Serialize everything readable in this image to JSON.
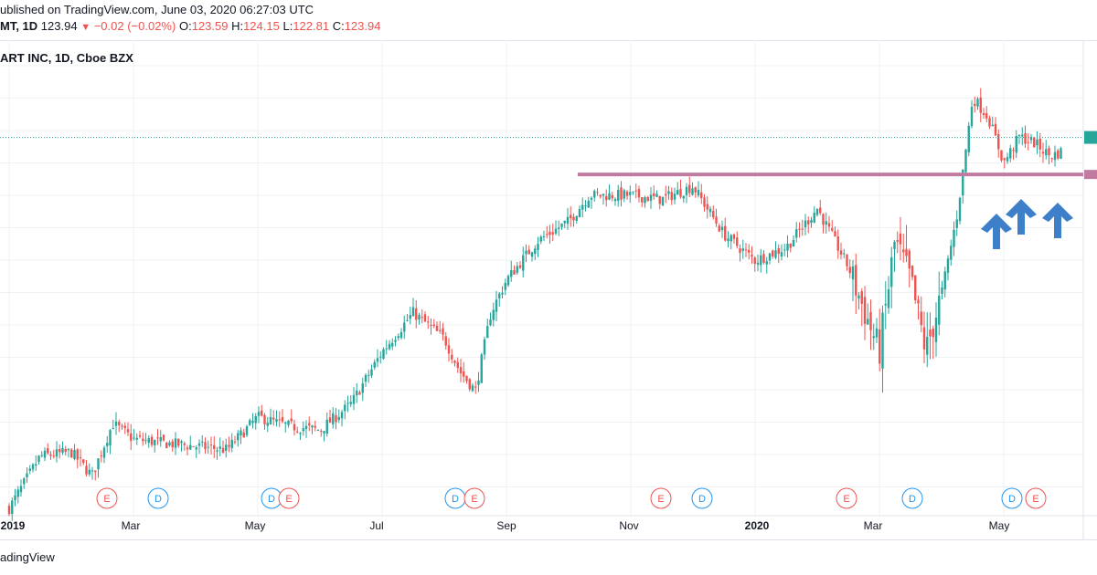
{
  "header": {
    "published": "ublished on TradingView.com, June 03, 2020 06:27:03 UTC",
    "symbol": "MT, 1D",
    "last": "123.94",
    "change": "−0.02 (−0.02%)",
    "o_label": "O:",
    "o_val": "123.59",
    "h_label": "H:",
    "h_val": "124.15",
    "l_label": "L:",
    "l_val": "122.81",
    "c_label": "C:",
    "c_val": "123.94"
  },
  "chart_title": "ART INC, 1D, Cboe BZX",
  "footer": "adingView",
  "colors": {
    "up": "#26a69a",
    "down": "#ef5350",
    "support": "#c27ba0",
    "arrow": "#3d7fc8",
    "event_e": "#ef5350",
    "event_d": "#2196f3",
    "grid": "#eef0f3"
  },
  "chart_data": {
    "type": "candlestick",
    "x_tick_labels": [
      "2019",
      "Mar",
      "May",
      "Jul",
      "Sep",
      "Nov",
      "2020",
      "Mar",
      "May"
    ],
    "y_range": [
      95,
      130
    ],
    "last_price": 123.94,
    "support_level": 121.1,
    "support_start": "Oct 2019",
    "close_path": [
      [
        "Jan 2019",
        95.5
      ],
      [
        "Jan 2019",
        99.5
      ],
      [
        "Feb 2019",
        99.8
      ],
      [
        "Feb 2019",
        98.0
      ],
      [
        "Feb 2019",
        102.0
      ],
      [
        "Mar 2019",
        100.8
      ],
      [
        "Mar 2019",
        100.5
      ],
      [
        "Apr 2019",
        100.0
      ],
      [
        "May 2019",
        102.5
      ],
      [
        "May 2019",
        101.8
      ],
      [
        "Jun 2019",
        101.5
      ],
      [
        "Jun 2019",
        103.5
      ],
      [
        "Jul 2019",
        107.5
      ],
      [
        "Jul 2019",
        110.5
      ],
      [
        "Aug 2019",
        108.5
      ],
      [
        "Aug 2019",
        106.0
      ],
      [
        "Aug 2019",
        104.5
      ],
      [
        "Aug 2019",
        110.5
      ],
      [
        "Sep 2019",
        113.0
      ],
      [
        "Sep 2019",
        116.0
      ],
      [
        "Oct 2019",
        117.5
      ],
      [
        "Oct 2019",
        119.5
      ],
      [
        "Oct 2019",
        119.5
      ],
      [
        "Nov 2019",
        119.5
      ],
      [
        "Nov 2019",
        119.2
      ],
      [
        "Dec 2019",
        120.2
      ],
      [
        "Dec 2019",
        116.5
      ],
      [
        "Jan 2020",
        114.5
      ],
      [
        "Jan 2020",
        115.5
      ],
      [
        "Feb 2020",
        118.5
      ],
      [
        "Feb 2020",
        114.0
      ],
      [
        "Mar 2020",
        107.5
      ],
      [
        "Mar 2020",
        116.0
      ],
      [
        "Mar 2020",
        113.0
      ],
      [
        "Mar 2020",
        107.5
      ],
      [
        "Apr 2020",
        112.0
      ],
      [
        "Apr 2020",
        118.0
      ],
      [
        "Apr 2020",
        127.0
      ],
      [
        "Apr 2020",
        125.5
      ],
      [
        "May 2020",
        122.0
      ],
      [
        "May 2020",
        124.0
      ],
      [
        "May 2020",
        123.5
      ],
      [
        "May 2020",
        122.5
      ],
      [
        "Jun 2020",
        123.94
      ]
    ],
    "events": [
      {
        "type": "E",
        "date": "Feb 2019"
      },
      {
        "type": "D",
        "date": "Mar 2019"
      },
      {
        "type": "D",
        "date": "May 2019"
      },
      {
        "type": "E",
        "date": "May 2019"
      },
      {
        "type": "D",
        "date": "Aug 2019"
      },
      {
        "type": "E",
        "date": "Aug 2019"
      },
      {
        "type": "E",
        "date": "Nov 2019"
      },
      {
        "type": "D",
        "date": "Dec 2019"
      },
      {
        "type": "E",
        "date": "Feb 2020"
      },
      {
        "type": "D",
        "date": "Mar 2020"
      },
      {
        "type": "D",
        "date": "May 2020"
      },
      {
        "type": "E",
        "date": "May 2020"
      }
    ],
    "arrow_annotations": [
      "May 2020",
      "May 2020",
      "May 2020"
    ],
    "grid": true
  }
}
